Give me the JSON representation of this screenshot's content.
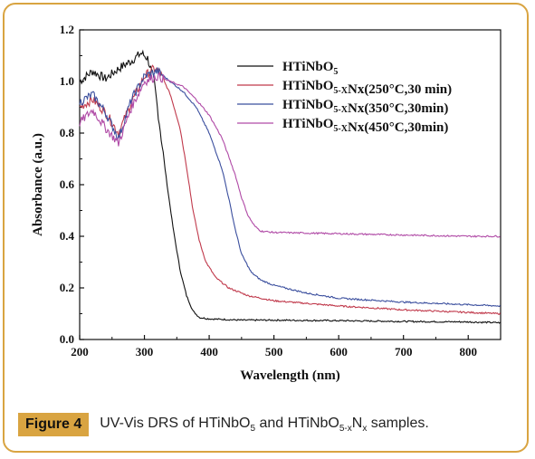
{
  "caption": {
    "label": "Figure 4",
    "text_parts": [
      "UV-Vis DRS of HTiNbO",
      "5",
      " and HTiNbO",
      "5-x",
      "N",
      "x",
      " samples."
    ]
  },
  "chart_data": {
    "type": "line",
    "xlabel": "Wavelength (nm)",
    "ylabel": "Absorbance (a.u.)",
    "xlim": [
      200,
      850
    ],
    "ylim": [
      0,
      1.2
    ],
    "x_ticks": [
      200,
      300,
      400,
      500,
      600,
      700,
      800
    ],
    "x_tick_labels": [
      "200",
      "300",
      "400",
      "500",
      "600",
      "700",
      "800"
    ],
    "y_ticks": [
      0,
      0.2,
      0.4,
      0.6,
      0.8,
      1.0,
      1.2
    ],
    "y_tick_labels": [
      "0.0",
      "0.2",
      "0.4",
      "0.6",
      "0.8",
      "1.0",
      "1.2"
    ],
    "legend_position": "top-right",
    "series": [
      {
        "name": "HTiNbO5",
        "label_parts": [
          [
            "HTiNbO",
            ""
          ],
          [
            "5",
            "sub"
          ]
        ],
        "color": "#111111",
        "x": [
          200,
          220,
          240,
          260,
          280,
          295,
          305,
          315,
          325,
          335,
          345,
          355,
          365,
          375,
          385,
          400,
          450,
          500,
          600,
          700,
          800,
          850
        ],
        "y": [
          1.0,
          1.04,
          1.01,
          1.05,
          1.08,
          1.11,
          1.09,
          1.0,
          0.8,
          0.6,
          0.42,
          0.27,
          0.17,
          0.11,
          0.085,
          0.08,
          0.075,
          0.075,
          0.073,
          0.07,
          0.068,
          0.065
        ]
      },
      {
        "name": "HTiNbO5-XNx(250°C,30 min)",
        "label_parts": [
          [
            "HTiNbO",
            ""
          ],
          [
            "5-X",
            "sub"
          ],
          [
            "Nx(250°C,30 min)",
            ""
          ]
        ],
        "color": "#c0394b",
        "x": [
          200,
          220,
          240,
          260,
          280,
          300,
          315,
          325,
          340,
          355,
          365,
          375,
          385,
          395,
          410,
          430,
          460,
          500,
          600,
          700,
          800,
          850
        ],
        "y": [
          0.9,
          0.93,
          0.88,
          0.8,
          0.92,
          1.02,
          1.05,
          1.03,
          0.95,
          0.82,
          0.67,
          0.5,
          0.38,
          0.3,
          0.24,
          0.2,
          0.17,
          0.15,
          0.13,
          0.115,
          0.105,
          0.1
        ]
      },
      {
        "name": "HTiNbO5-XNx(350°C,30min)",
        "label_parts": [
          [
            "HTiNbO",
            ""
          ],
          [
            "5-X",
            "sub"
          ],
          [
            "Nx(350°C,30min)",
            ""
          ]
        ],
        "color": "#3b4f9e",
        "x": [
          200,
          220,
          240,
          260,
          280,
          300,
          320,
          340,
          360,
          380,
          400,
          420,
          430,
          440,
          450,
          465,
          480,
          500,
          550,
          600,
          700,
          800,
          850
        ],
        "y": [
          0.92,
          0.95,
          0.88,
          0.78,
          0.93,
          1.02,
          1.04,
          1.0,
          0.96,
          0.9,
          0.8,
          0.66,
          0.55,
          0.43,
          0.33,
          0.26,
          0.23,
          0.21,
          0.18,
          0.16,
          0.145,
          0.135,
          0.13
        ]
      },
      {
        "name": "HTiNbO5-XNx(450°C,30min)",
        "label_parts": [
          [
            "HTiNbO",
            ""
          ],
          [
            "5-X",
            "sub"
          ],
          [
            "Nx(450°C,30min)",
            ""
          ]
        ],
        "color": "#b04aa6",
        "x": [
          200,
          220,
          240,
          260,
          280,
          300,
          320,
          340,
          360,
          380,
          400,
          420,
          440,
          450,
          460,
          470,
          480,
          500,
          600,
          700,
          800,
          850
        ],
        "y": [
          0.84,
          0.89,
          0.82,
          0.76,
          0.9,
          1.0,
          1.02,
          1.0,
          0.98,
          0.93,
          0.87,
          0.78,
          0.64,
          0.55,
          0.48,
          0.44,
          0.42,
          0.415,
          0.41,
          0.405,
          0.4,
          0.4
        ]
      }
    ]
  }
}
